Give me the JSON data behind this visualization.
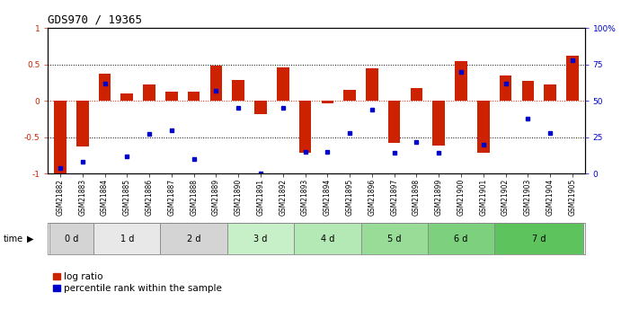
{
  "title": "GDS970 / 19365",
  "samples": [
    "GSM21882",
    "GSM21883",
    "GSM21884",
    "GSM21885",
    "GSM21886",
    "GSM21887",
    "GSM21888",
    "GSM21889",
    "GSM21890",
    "GSM21891",
    "GSM21892",
    "GSM21893",
    "GSM21894",
    "GSM21895",
    "GSM21896",
    "GSM21897",
    "GSM21898",
    "GSM21899",
    "GSM21900",
    "GSM21901",
    "GSM21902",
    "GSM21903",
    "GSM21904",
    "GSM21905"
  ],
  "log_ratio": [
    -1.0,
    -0.63,
    0.37,
    0.1,
    0.22,
    0.12,
    0.13,
    0.48,
    0.28,
    -0.18,
    0.46,
    -0.72,
    -0.03,
    0.15,
    0.44,
    -0.58,
    0.18,
    -0.62,
    0.55,
    -0.72,
    0.35,
    0.27,
    0.22,
    0.62
  ],
  "percentile_rank": [
    0.04,
    0.08,
    0.62,
    0.12,
    0.27,
    0.3,
    0.1,
    0.57,
    0.45,
    0.0,
    0.45,
    0.15,
    0.15,
    0.28,
    0.44,
    0.14,
    0.22,
    0.14,
    0.7,
    0.2,
    0.62,
    0.38,
    0.28,
    0.78
  ],
  "time_groups": [
    {
      "label": "0 d",
      "start": 0,
      "end": 2,
      "color": "#d4d4d4"
    },
    {
      "label": "1 d",
      "start": 2,
      "end": 5,
      "color": "#e8e8e8"
    },
    {
      "label": "2 d",
      "start": 5,
      "end": 8,
      "color": "#d4d4d4"
    },
    {
      "label": "3 d",
      "start": 8,
      "end": 11,
      "color": "#c8f0c8"
    },
    {
      "label": "4 d",
      "start": 11,
      "end": 14,
      "color": "#b4e8b4"
    },
    {
      "label": "5 d",
      "start": 14,
      "end": 17,
      "color": "#98dc98"
    },
    {
      "label": "6 d",
      "start": 17,
      "end": 20,
      "color": "#7dd07d"
    },
    {
      "label": "7 d",
      "start": 20,
      "end": 24,
      "color": "#5dc45d"
    }
  ],
  "bar_color_red": "#cc2200",
  "bar_color_blue": "#0000cc",
  "ylim_min": -1.0,
  "ylim_max": 1.0,
  "y2lim_min": 0,
  "y2lim_max": 100,
  "yticks": [
    -1.0,
    -0.5,
    0.0,
    0.5,
    1.0
  ],
  "ytick_labels": [
    "-1",
    "-0.5",
    "0",
    "0.5",
    "1"
  ],
  "y2ticks": [
    0,
    25,
    50,
    75,
    100
  ],
  "y2tick_labels": [
    "0",
    "25",
    "50",
    "75",
    "100%"
  ],
  "dotted_line_color": "#000000",
  "zero_line_color": "#cc2200",
  "bg_color": "#ffffff",
  "legend_label_red": "log ratio",
  "legend_label_blue": "percentile rank within the sample",
  "title_fontsize": 9,
  "tick_fontsize": 6.5,
  "label_fontsize": 7.5,
  "sample_fontsize": 5.5
}
